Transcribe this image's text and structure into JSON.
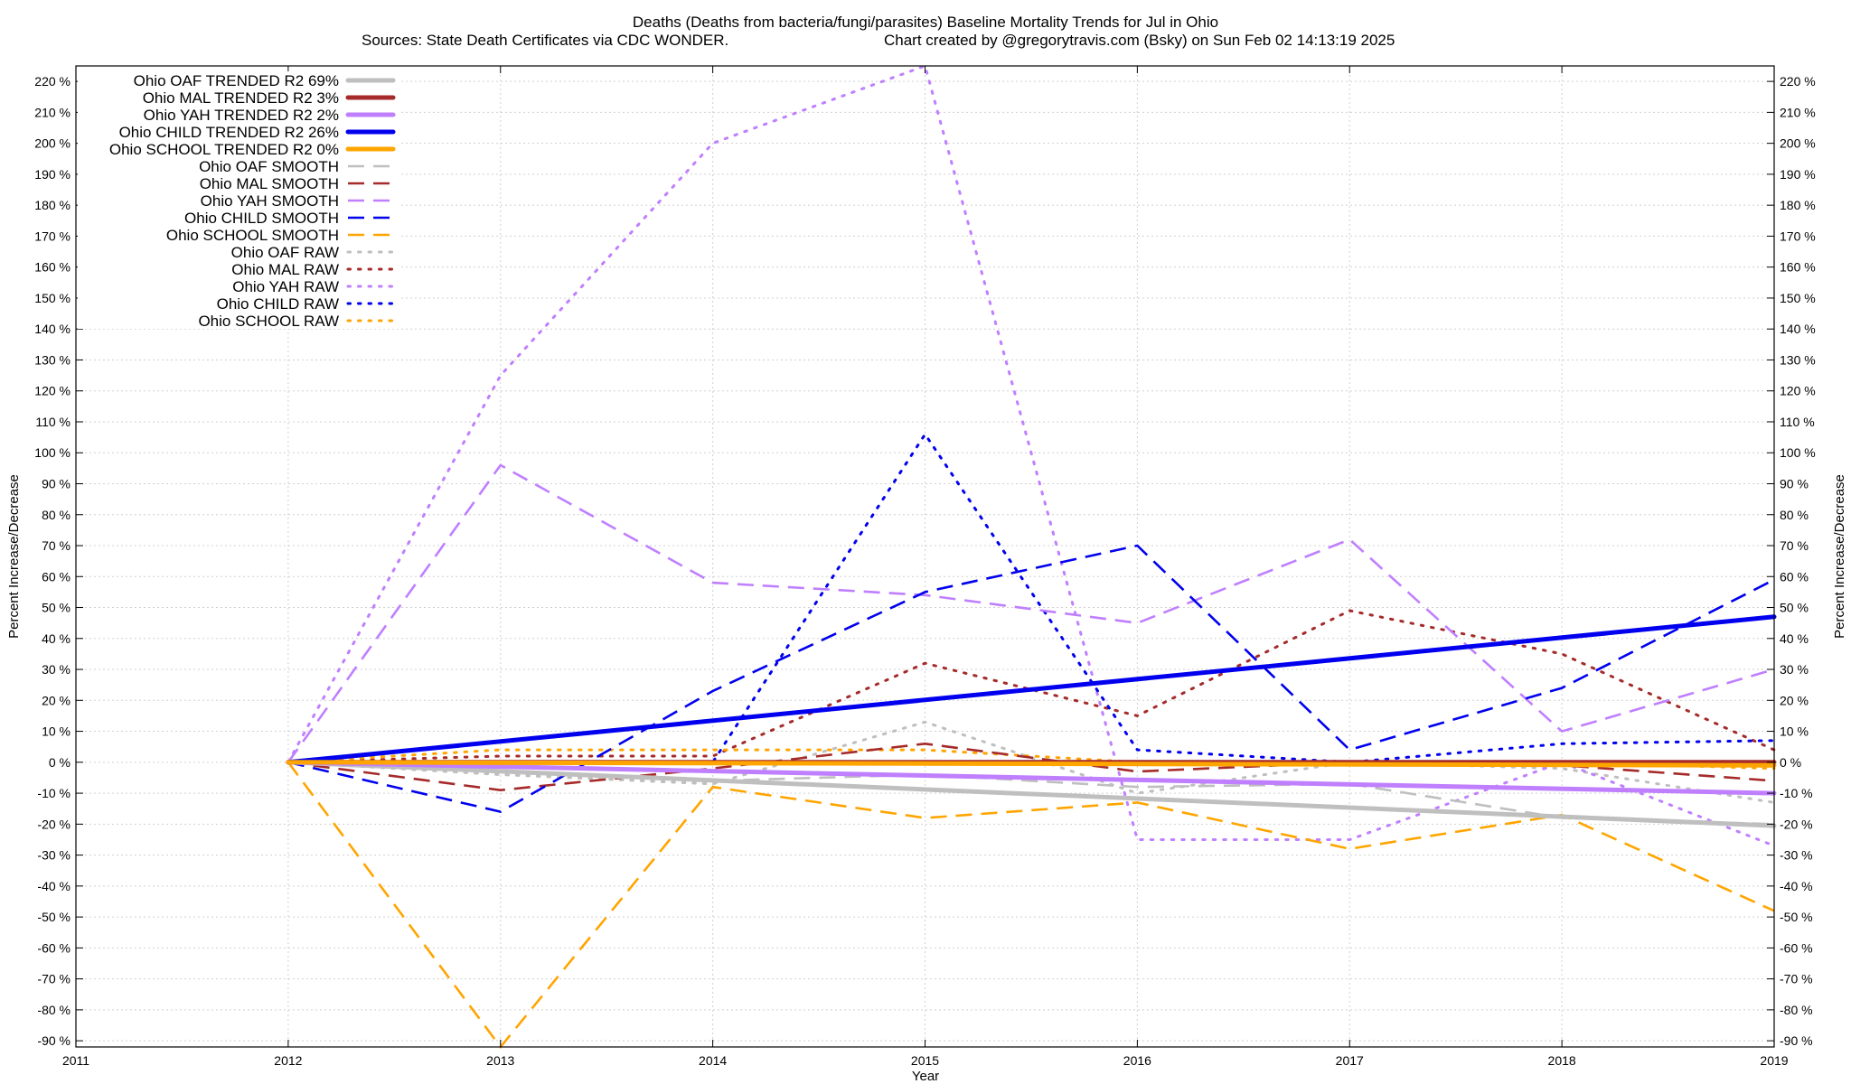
{
  "chart_data": {
    "type": "line",
    "title": "Deaths (Deaths from bacteria/fungi/parasites)  Baseline Mortality Trends for Jul in Ohio",
    "subtitle_left": "Sources: State Death Certificates via CDC WONDER.",
    "subtitle_right": "Chart created by @gregorytravis.com (Bsky) on Sun Feb 02 14:13:19 2025",
    "xlabel": "Year",
    "ylabel_left": "Percent Increase/Decrease",
    "ylabel_right": "Percent Increase/Decrease",
    "xlim": [
      2011,
      2019
    ],
    "ylim": [
      -92,
      225
    ],
    "x_ticks": [
      2011,
      2012,
      2013,
      2014,
      2015,
      2016,
      2017,
      2018,
      2019
    ],
    "y_ticks": [
      -90,
      -80,
      -70,
      -60,
      -50,
      -40,
      -30,
      -20,
      -10,
      0,
      10,
      20,
      30,
      40,
      50,
      60,
      70,
      80,
      90,
      100,
      110,
      120,
      130,
      140,
      150,
      160,
      170,
      180,
      190,
      200,
      210,
      220
    ],
    "y_tick_suffix": " %",
    "grid": true,
    "legend_position": "top-left",
    "series": [
      {
        "name": "Ohio OAF TRENDED R2  69%",
        "style": "solid",
        "color": "#bfbfbf",
        "x": [
          2012,
          2019
        ],
        "y": [
          0,
          -20.5
        ]
      },
      {
        "name": "Ohio MAL TRENDED R2   3%",
        "style": "solid",
        "color": "#a52a2a",
        "x": [
          2012,
          2019
        ],
        "y": [
          0,
          0
        ]
      },
      {
        "name": "Ohio YAH TRENDED R2   2%",
        "style": "solid",
        "color": "#bf7fff",
        "x": [
          2012,
          2019
        ],
        "y": [
          0,
          -10
        ]
      },
      {
        "name": "Ohio CHILD TRENDED R2  26%",
        "style": "solid",
        "color": "#0000ee",
        "x": [
          2012,
          2019
        ],
        "y": [
          0,
          47
        ]
      },
      {
        "name": "Ohio SCHOOL TRENDED R2   0%",
        "style": "solid",
        "color": "#ffa500",
        "x": [
          2012,
          2019
        ],
        "y": [
          0,
          -1
        ]
      },
      {
        "name": "Ohio OAF SMOOTH",
        "style": "dashed",
        "color": "#bfbfbf",
        "x": [
          2012,
          2013,
          2014,
          2015,
          2016,
          2017,
          2018,
          2019
        ],
        "y": [
          0,
          -3,
          -6,
          -4,
          -8,
          -7,
          -18,
          -20
        ]
      },
      {
        "name": "Ohio MAL SMOOTH",
        "style": "dashed",
        "color": "#a52a2a",
        "x": [
          2012,
          2013,
          2014,
          2015,
          2016,
          2017,
          2018,
          2019
        ],
        "y": [
          0,
          -9,
          -2,
          6,
          -3,
          0,
          -1,
          -6
        ]
      },
      {
        "name": "Ohio YAH SMOOTH",
        "style": "dashed",
        "color": "#bf7fff",
        "x": [
          2012,
          2013,
          2014,
          2015,
          2016,
          2017,
          2018,
          2019
        ],
        "y": [
          0,
          96,
          58,
          54,
          45,
          72,
          10,
          30
        ]
      },
      {
        "name": "Ohio CHILD SMOOTH",
        "style": "dashed",
        "color": "#0000ee",
        "x": [
          2012,
          2013,
          2014,
          2015,
          2016,
          2017,
          2018,
          2019
        ],
        "y": [
          0,
          -16,
          23,
          55,
          70,
          4,
          24,
          59
        ]
      },
      {
        "name": "Ohio SCHOOL SMOOTH",
        "style": "dashed",
        "color": "#ffa500",
        "x": [
          2012,
          2013,
          2014,
          2015,
          2016,
          2017,
          2018,
          2019
        ],
        "y": [
          0,
          -92,
          -8,
          -18,
          -13,
          -28,
          -17,
          -48
        ]
      },
      {
        "name": "Ohio OAF RAW",
        "style": "dotted",
        "color": "#bfbfbf",
        "x": [
          2012,
          2013,
          2014,
          2015,
          2016,
          2017,
          2018,
          2019
        ],
        "y": [
          0,
          -4,
          -7,
          13,
          -10,
          0,
          -2,
          -13
        ]
      },
      {
        "name": "Ohio MAL RAW",
        "style": "dotted",
        "color": "#a52a2a",
        "x": [
          2012,
          2013,
          2014,
          2015,
          2016,
          2017,
          2018,
          2019
        ],
        "y": [
          0,
          2,
          2,
          32,
          15,
          49,
          35,
          4
        ]
      },
      {
        "name": "Ohio YAH RAW",
        "style": "dotted",
        "color": "#bf7fff",
        "x": [
          2012,
          2013,
          2014,
          2015,
          2016,
          2017,
          2018,
          2019
        ],
        "y": [
          0,
          125,
          200,
          225,
          -25,
          -25,
          0,
          -27
        ]
      },
      {
        "name": "Ohio CHILD RAW",
        "style": "dotted",
        "color": "#0000ee",
        "x": [
          2012,
          2013,
          2014,
          2015,
          2016,
          2017,
          2018,
          2019
        ],
        "y": [
          0,
          0,
          0,
          106,
          4,
          0,
          6,
          7
        ]
      },
      {
        "name": "Ohio SCHOOL RAW",
        "style": "dotted",
        "color": "#ffa500",
        "x": [
          2012,
          2013,
          2014,
          2015,
          2016,
          2017,
          2018,
          2019
        ],
        "y": [
          0,
          4,
          4,
          4,
          0,
          0,
          0,
          -2
        ]
      }
    ]
  }
}
